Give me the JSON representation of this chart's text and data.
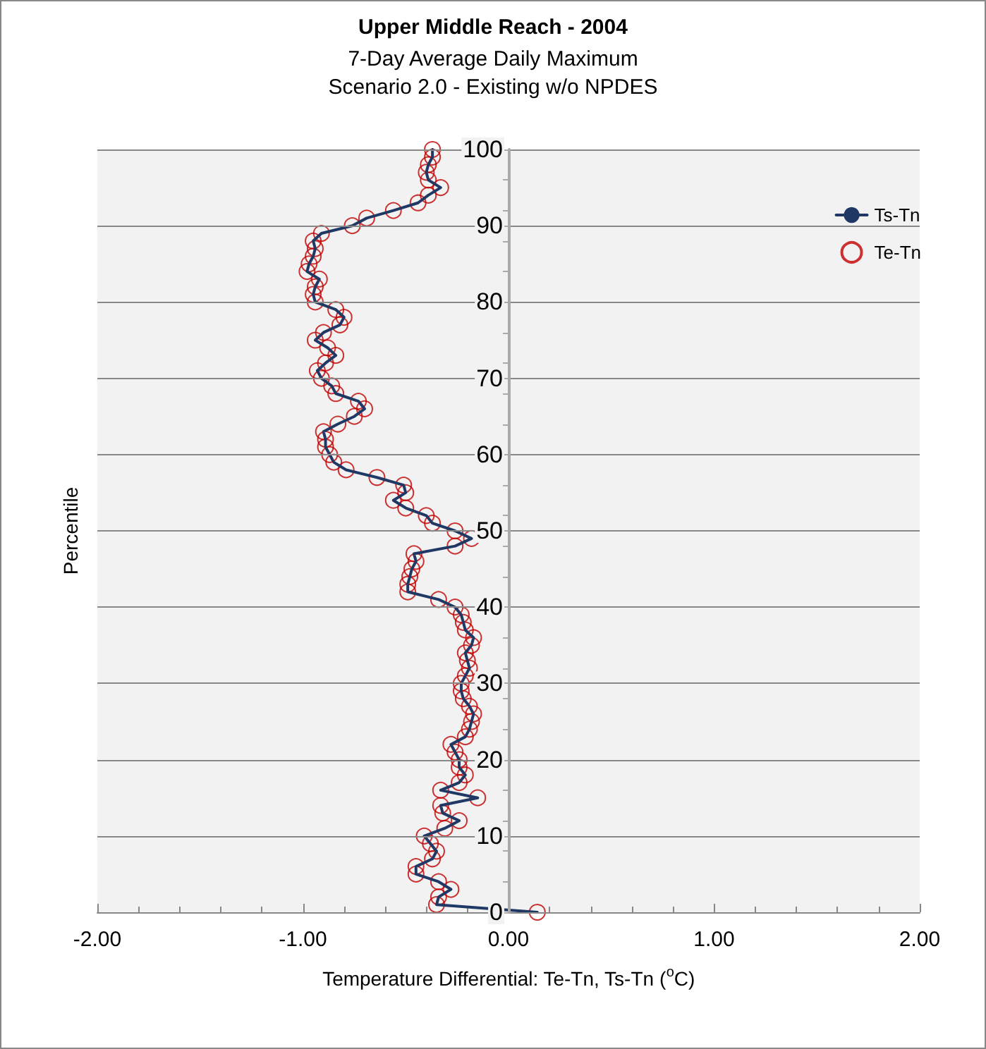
{
  "chart_data": {
    "type": "line",
    "title": "Upper Middle Reach - 2004",
    "subtitle": "7-Day Average Daily Maximum\nScenario 2.0 - Existing w/o NPDES",
    "xlabel": "Temperature Differential: Te-Tn, Ts-Tn ($^{o}$C)",
    "ylabel": "Percentile",
    "series": [
      {
        "name": "Ts-Tn",
        "type": "line",
        "color": "#1f3864",
        "marker": "none",
        "line_style": "solid",
        "x": [
          0.14,
          -0.35,
          -0.34,
          -0.28,
          -0.34,
          -0.45,
          -0.45,
          -0.37,
          -0.35,
          -0.38,
          -0.41,
          -0.31,
          -0.24,
          -0.32,
          -0.33,
          -0.15,
          -0.33,
          -0.24,
          -0.21,
          -0.24,
          -0.24,
          -0.26,
          -0.28,
          -0.21,
          -0.19,
          -0.18,
          -0.17,
          -0.19,
          -0.22,
          -0.23,
          -0.23,
          -0.21,
          -0.19,
          -0.2,
          -0.21,
          -0.18,
          -0.17,
          -0.21,
          -0.22,
          -0.23,
          -0.26,
          -0.34,
          -0.49,
          -0.49,
          -0.48,
          -0.47,
          -0.45,
          -0.46,
          -0.26,
          -0.18,
          -0.26,
          -0.37,
          -0.4,
          -0.5,
          -0.56,
          -0.5,
          -0.51,
          -0.64,
          -0.79,
          -0.85,
          -0.87,
          -0.89,
          -0.89,
          -0.9,
          -0.83,
          -0.75,
          -0.7,
          -0.73,
          -0.84,
          -0.86,
          -0.91,
          -0.93,
          -0.89,
          -0.84,
          -0.88,
          -0.94,
          -0.9,
          -0.82,
          -0.8,
          -0.84,
          -0.94,
          -0.95,
          -0.94,
          -0.92,
          -0.98,
          -0.97,
          -0.95,
          -0.94,
          -0.95,
          -0.91,
          -0.76,
          -0.69,
          -0.56,
          -0.44,
          -0.39,
          -0.33,
          -0.39,
          -0.4,
          -0.39,
          -0.37,
          -0.37
        ],
        "values": [
          0,
          1,
          2,
          3,
          4,
          5,
          6,
          7,
          8,
          9,
          10,
          11,
          12,
          13,
          14,
          15,
          16,
          17,
          18,
          19,
          20,
          21,
          22,
          23,
          24,
          25,
          26,
          27,
          28,
          29,
          30,
          31,
          32,
          33,
          34,
          35,
          36,
          37,
          38,
          39,
          40,
          41,
          42,
          43,
          44,
          45,
          46,
          47,
          48,
          49,
          50,
          51,
          52,
          53,
          54,
          55,
          56,
          57,
          58,
          59,
          60,
          61,
          62,
          63,
          64,
          65,
          66,
          67,
          68,
          69,
          70,
          71,
          72,
          73,
          74,
          75,
          76,
          77,
          78,
          79,
          80,
          81,
          82,
          83,
          84,
          85,
          86,
          87,
          88,
          89,
          90,
          91,
          92,
          93,
          94,
          95,
          96,
          97,
          98,
          99,
          100
        ]
      },
      {
        "name": "Te-Tn",
        "type": "scatter",
        "color": "#c00000",
        "marker": "circle",
        "x": [
          0.14,
          -0.35,
          -0.34,
          -0.28,
          -0.34,
          -0.45,
          -0.45,
          -0.37,
          -0.35,
          -0.38,
          -0.41,
          -0.31,
          -0.24,
          -0.32,
          -0.33,
          -0.15,
          -0.33,
          -0.24,
          -0.21,
          -0.24,
          -0.24,
          -0.26,
          -0.28,
          -0.21,
          -0.19,
          -0.18,
          -0.17,
          -0.19,
          -0.22,
          -0.23,
          -0.23,
          -0.21,
          -0.19,
          -0.2,
          -0.21,
          -0.18,
          -0.17,
          -0.21,
          -0.22,
          -0.23,
          -0.26,
          -0.34,
          -0.49,
          -0.49,
          -0.48,
          -0.47,
          -0.45,
          -0.46,
          -0.26,
          -0.18,
          -0.26,
          -0.37,
          -0.4,
          -0.5,
          -0.56,
          -0.5,
          -0.51,
          -0.64,
          -0.79,
          -0.85,
          -0.87,
          -0.89,
          -0.89,
          -0.9,
          -0.83,
          -0.75,
          -0.7,
          -0.73,
          -0.84,
          -0.86,
          -0.91,
          -0.93,
          -0.89,
          -0.84,
          -0.88,
          -0.94,
          -0.9,
          -0.82,
          -0.8,
          -0.84,
          -0.94,
          -0.95,
          -0.94,
          -0.92,
          -0.98,
          -0.97,
          -0.95,
          -0.94,
          -0.95,
          -0.91,
          -0.76,
          -0.69,
          -0.56,
          -0.44,
          -0.39,
          -0.33,
          -0.39,
          -0.4,
          -0.39,
          -0.37,
          -0.37
        ],
        "values": [
          0,
          1,
          2,
          3,
          4,
          5,
          6,
          7,
          8,
          9,
          10,
          11,
          12,
          13,
          14,
          15,
          16,
          17,
          18,
          19,
          20,
          21,
          22,
          23,
          24,
          25,
          26,
          27,
          28,
          29,
          30,
          31,
          32,
          33,
          34,
          35,
          36,
          37,
          38,
          39,
          40,
          41,
          42,
          43,
          44,
          45,
          46,
          47,
          48,
          49,
          50,
          51,
          52,
          53,
          54,
          55,
          56,
          57,
          58,
          59,
          60,
          61,
          62,
          63,
          64,
          65,
          66,
          67,
          68,
          69,
          70,
          71,
          72,
          73,
          74,
          75,
          76,
          77,
          78,
          79,
          80,
          81,
          82,
          83,
          84,
          85,
          86,
          87,
          88,
          89,
          90,
          91,
          92,
          93,
          94,
          95,
          96,
          97,
          98,
          99,
          100
        ]
      }
    ],
    "xlim": [
      -2,
      2
    ],
    "xticks": [
      {
        "value": -2,
        "label": "-2.00"
      },
      {
        "value": -1,
        "label": "-1.00"
      },
      {
        "value": 0,
        "label": "0.00"
      },
      {
        "value": 1,
        "label": "1.00"
      },
      {
        "value": 2,
        "label": "2.00"
      }
    ],
    "ylim": [
      0,
      100
    ],
    "yticks": [
      0,
      10,
      20,
      30,
      40,
      50,
      60,
      70,
      80,
      90,
      100
    ],
    "grid": "y",
    "legend": "top right"
  }
}
